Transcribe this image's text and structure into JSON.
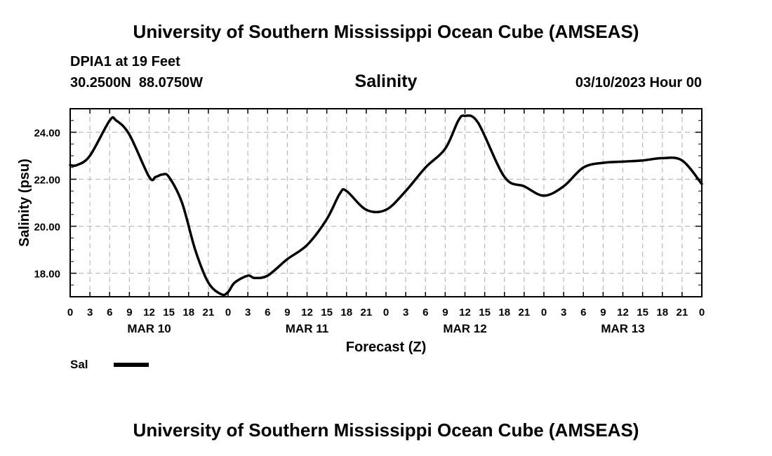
{
  "header": {
    "title": "University of Southern Mississippi Ocean Cube (AMSEAS)",
    "station": "DPIA1 at 19 Feet",
    "coords": "30.2500N  88.0750W",
    "date_hour": "03/10/2023 Hour 00"
  },
  "footer": {
    "title": "University of Southern Mississippi Ocean Cube (AMSEAS)"
  },
  "legend": {
    "label": "Sal"
  },
  "colors": {
    "line": "#000000",
    "grid": "#bbbbbb",
    "background": "#ffffff"
  },
  "chart_data": {
    "type": "line",
    "title": "Salinity",
    "xlabel": "Forecast (Z)",
    "ylabel": "Salinity (psu)",
    "xlim": [
      0,
      96
    ],
    "ylim": [
      17,
      25
    ],
    "grid": true,
    "y_ticks": [
      "18.00",
      "20.00",
      "22.00",
      "24.00"
    ],
    "y_tick_values": [
      18,
      20,
      22,
      24
    ],
    "x_tick_labels": [
      "0",
      "3",
      "6",
      "9",
      "12",
      "15",
      "18",
      "21",
      "0",
      "3",
      "6",
      "9",
      "12",
      "15",
      "18",
      "21",
      "0",
      "3",
      "6",
      "9",
      "12",
      "15",
      "18",
      "21",
      "0",
      "3",
      "6",
      "9",
      "12",
      "15",
      "18",
      "21",
      "0"
    ],
    "day_labels": [
      {
        "label": "MAR 10",
        "hour": 12
      },
      {
        "label": "MAR 11",
        "hour": 36
      },
      {
        "label": "MAR 12",
        "hour": 60
      },
      {
        "label": "MAR 13",
        "hour": 84
      }
    ],
    "series": [
      {
        "name": "Sal",
        "x": [
          0,
          1,
          3,
          6,
          7,
          9,
          12,
          13,
          14,
          15,
          17,
          19,
          21,
          23,
          24,
          25,
          27,
          28,
          30,
          33,
          36,
          39,
          41,
          42,
          45,
          48,
          51,
          54,
          57,
          59,
          60,
          62,
          66,
          69,
          72,
          75,
          78,
          81,
          84,
          87,
          90,
          93,
          96
        ],
        "values": [
          22.6,
          22.6,
          23.0,
          24.5,
          24.5,
          23.9,
          22.1,
          22.1,
          22.2,
          22.1,
          21.0,
          19.0,
          17.6,
          17.1,
          17.2,
          17.6,
          17.9,
          17.8,
          17.9,
          18.6,
          19.2,
          20.3,
          21.4,
          21.5,
          20.7,
          20.7,
          21.5,
          22.5,
          23.3,
          24.5,
          24.7,
          24.4,
          22.1,
          21.7,
          21.3,
          21.7,
          22.5,
          22.7,
          22.75,
          22.8,
          22.9,
          22.8,
          21.8
        ]
      }
    ]
  }
}
